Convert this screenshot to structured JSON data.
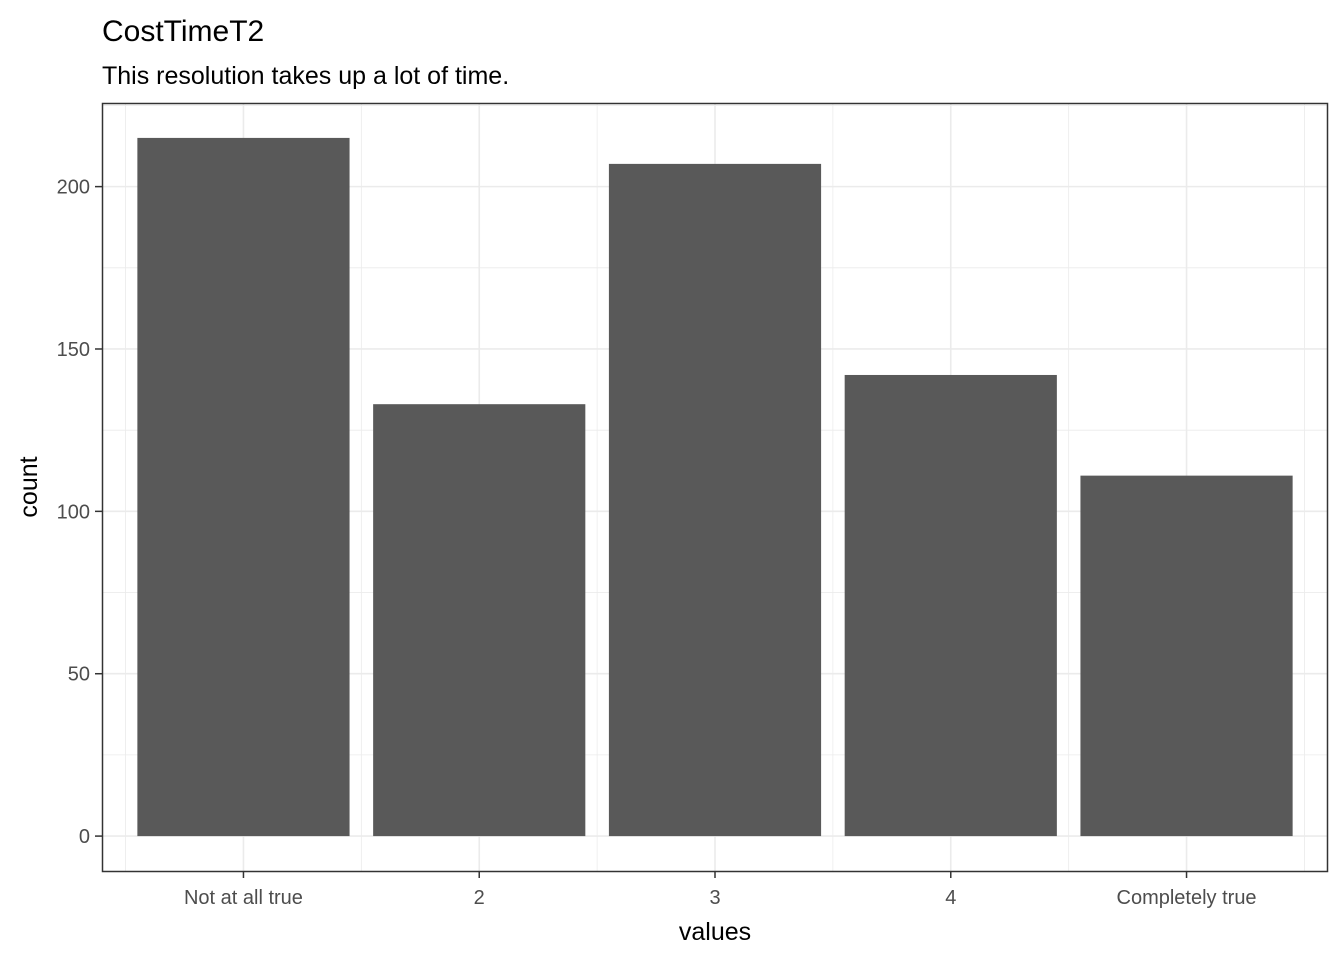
{
  "chart_data": {
    "type": "bar",
    "title": "CostTimeT2",
    "subtitle": "This resolution takes up a lot of time.",
    "xlabel": "values",
    "ylabel": "count",
    "categories": [
      "Not at all true",
      "2",
      "3",
      "4",
      "Completely true"
    ],
    "values": [
      215,
      133,
      207,
      142,
      111
    ],
    "ylim": [
      -10.75,
      225.75
    ],
    "yticks": [
      0,
      50,
      100,
      150,
      200
    ],
    "yticks_minor": [
      25,
      75,
      125,
      175,
      225
    ],
    "grid": true,
    "bar_color": "#595959",
    "grid_color": "#ebebeb",
    "panel_border_color": "#333333"
  }
}
